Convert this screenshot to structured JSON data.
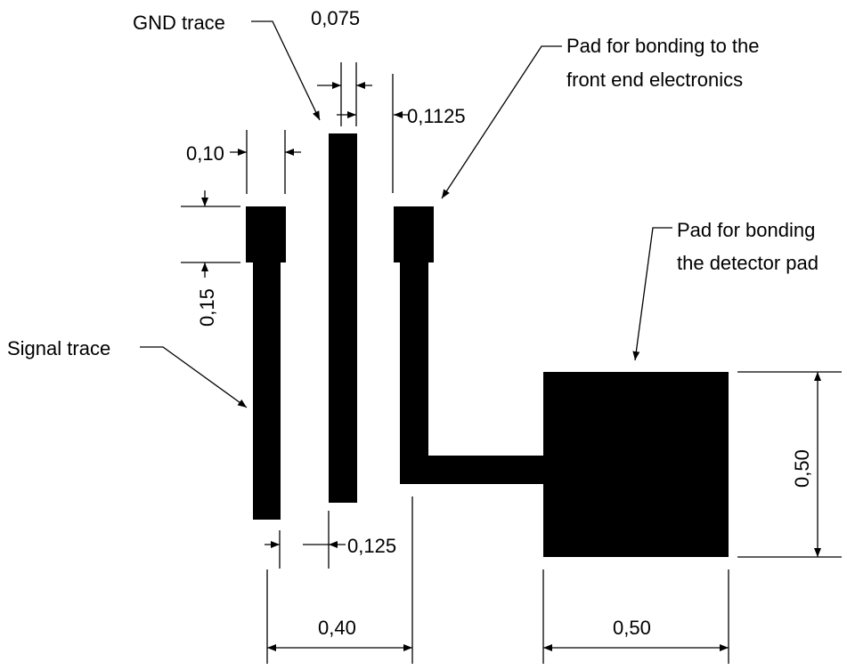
{
  "labels": {
    "gnd_trace": "GND trace",
    "signal_trace": "Signal trace",
    "pad_front_end_line1": "Pad for bonding to the",
    "pad_front_end_line2": "front end electronics",
    "pad_detector_line1": "Pad for bonding",
    "pad_detector_line2": "the detector pad"
  },
  "dimensions": {
    "gnd_width": "0,075",
    "gap_gnd_pad": "0,1125",
    "signal_pad_width": "0,10",
    "signal_pad_height": "0,15",
    "gap_signal_gnd": "0,125",
    "total_span": "0,40",
    "detector_pad_width": "0,50",
    "detector_pad_height": "0,50"
  },
  "colors": {
    "ink": "#000000",
    "background": "#ffffff"
  }
}
